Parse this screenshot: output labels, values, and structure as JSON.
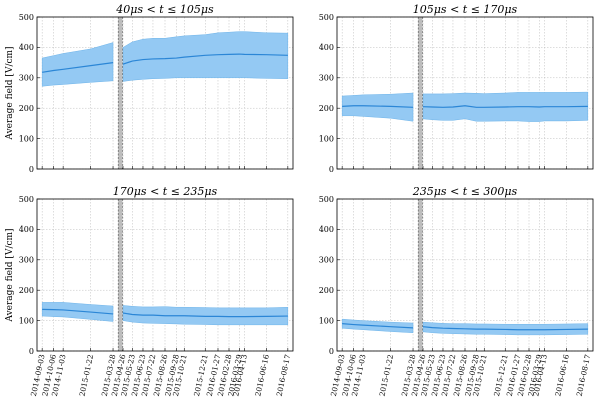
{
  "chart_data": [
    {
      "type": "area",
      "title": "40μs < t ≤ 105μs",
      "ylabel": "Average field [V/cm]",
      "xlabel": "",
      "ylim": [
        0,
        500
      ],
      "yticks": [
        0,
        100,
        200,
        300,
        400,
        500
      ],
      "x_tick_labels": [
        "2014-09-03",
        "2014-10-06",
        "2014-11-03",
        "2015-01-22",
        "2015-03-28",
        "2015-04-26",
        "2015-05-23",
        "2015-06-23",
        "2015-07-22",
        "2015-08-26",
        "2015-09-28",
        "2015-10-21",
        "2015-12-21",
        "2016-01-27",
        "2016-02-28",
        "2016-03-29",
        "2016-04-13",
        "2016-06-16",
        "2016-08-17"
      ],
      "gap_start": "2015-04-12",
      "gap_end": "2015-04-24",
      "grid": true,
      "series": [
        {
          "x": [
            "2014-09-03",
            "2014-10-06",
            "2014-11-03",
            "2015-01-22",
            "2015-03-28",
            "2015-04-26",
            "2015-05-23",
            "2015-06-23",
            "2015-07-22",
            "2015-08-26",
            "2015-09-28",
            "2015-10-21",
            "2015-12-21",
            "2016-01-27",
            "2016-02-28",
            "2016-03-29",
            "2016-04-13",
            "2016-06-16",
            "2016-08-17"
          ],
          "mean": [
            318,
            324,
            328,
            340,
            350,
            345,
            355,
            360,
            362,
            363,
            365,
            368,
            374,
            376,
            377,
            378,
            377,
            376,
            374
          ],
          "lower": [
            272,
            276,
            278,
            285,
            290,
            288,
            292,
            295,
            297,
            298,
            300,
            300,
            300,
            300,
            300,
            300,
            300,
            298,
            297
          ],
          "upper": [
            365,
            373,
            380,
            395,
            416,
            400,
            418,
            427,
            430,
            430,
            435,
            438,
            442,
            448,
            450,
            452,
            452,
            448,
            447
          ]
        }
      ]
    },
    {
      "type": "area",
      "title": "105μs < t ≤ 170μs",
      "ylabel": "",
      "xlabel": "",
      "ylim": [
        0,
        500
      ],
      "yticks": [
        0,
        100,
        200,
        300,
        400,
        500
      ],
      "x_tick_labels": [
        "2014-09-03",
        "2014-10-06",
        "2014-11-03",
        "2015-01-22",
        "2015-03-28",
        "2015-04-26",
        "2015-05-23",
        "2015-06-23",
        "2015-07-22",
        "2015-08-26",
        "2015-09-28",
        "2015-10-21",
        "2015-12-21",
        "2016-01-27",
        "2016-02-28",
        "2016-03-29",
        "2016-04-13",
        "2016-06-16",
        "2016-08-17"
      ],
      "gap_start": "2015-04-12",
      "gap_end": "2015-04-24",
      "grid": true,
      "series": [
        {
          "x": [
            "2014-09-03",
            "2014-10-06",
            "2014-11-03",
            "2015-01-22",
            "2015-03-28",
            "2015-04-26",
            "2015-05-23",
            "2015-06-23",
            "2015-07-22",
            "2015-08-26",
            "2015-09-28",
            "2015-10-21",
            "2015-12-21",
            "2016-01-27",
            "2016-02-28",
            "2016-03-29",
            "2016-04-13",
            "2016-06-16",
            "2016-08-17"
          ],
          "mean": [
            206,
            208,
            208,
            206,
            203,
            205,
            204,
            203,
            204,
            208,
            203,
            203,
            204,
            205,
            205,
            204,
            205,
            205,
            206
          ],
          "lower": [
            175,
            175,
            173,
            167,
            157,
            165,
            162,
            160,
            160,
            165,
            157,
            157,
            158,
            158,
            156,
            156,
            158,
            158,
            160
          ],
          "upper": [
            240,
            242,
            244,
            246,
            250,
            247,
            247,
            247,
            248,
            250,
            249,
            248,
            250,
            252,
            252,
            252,
            252,
            252,
            253
          ]
        }
      ]
    },
    {
      "type": "area",
      "title": "170μs < t ≤ 235μs",
      "ylabel": "Average field [V/cm]",
      "xlabel": "",
      "ylim": [
        0,
        500
      ],
      "yticks": [
        0,
        100,
        200,
        300,
        400,
        500
      ],
      "x_tick_labels": [
        "2014-09-03",
        "2014-10-06",
        "2014-11-03",
        "2015-01-22",
        "2015-03-28",
        "2015-04-26",
        "2015-05-23",
        "2015-06-23",
        "2015-07-22",
        "2015-08-26",
        "2015-09-28",
        "2015-10-21",
        "2015-12-21",
        "2016-01-27",
        "2016-02-28",
        "2016-03-29",
        "2016-04-13",
        "2016-06-16",
        "2016-08-17"
      ],
      "gap_start": "2015-04-12",
      "gap_end": "2015-04-24",
      "grid": true,
      "series": [
        {
          "x": [
            "2014-09-03",
            "2014-10-06",
            "2014-11-03",
            "2015-01-22",
            "2015-03-28",
            "2015-04-26",
            "2015-05-23",
            "2015-06-23",
            "2015-07-22",
            "2015-08-26",
            "2015-09-28",
            "2015-10-21",
            "2015-12-21",
            "2016-01-27",
            "2016-02-28",
            "2016-03-29",
            "2016-04-13",
            "2016-06-16",
            "2016-08-17"
          ],
          "mean": [
            137,
            136,
            135,
            128,
            122,
            125,
            120,
            118,
            118,
            116,
            116,
            116,
            114,
            114,
            113,
            113,
            113,
            114,
            115
          ],
          "lower": [
            115,
            113,
            112,
            104,
            97,
            100,
            95,
            92,
            91,
            90,
            89,
            88,
            87,
            86,
            86,
            86,
            86,
            86,
            86
          ],
          "upper": [
            160,
            160,
            160,
            153,
            148,
            150,
            147,
            145,
            145,
            146,
            144,
            144,
            143,
            142,
            142,
            142,
            142,
            142,
            144
          ]
        }
      ]
    },
    {
      "type": "area",
      "title": "235μs < t ≤ 300μs",
      "ylabel": "",
      "xlabel": "",
      "ylim": [
        0,
        500
      ],
      "yticks": [
        0,
        100,
        200,
        300,
        400,
        500
      ],
      "x_tick_labels": [
        "2014-09-03",
        "2014-10-06",
        "2014-11-03",
        "2015-01-22",
        "2015-03-28",
        "2015-04-26",
        "2015-05-23",
        "2015-06-23",
        "2015-07-22",
        "2015-08-26",
        "2015-09-28",
        "2015-10-21",
        "2015-12-21",
        "2016-01-27",
        "2016-02-28",
        "2016-03-29",
        "2016-04-13",
        "2016-06-16",
        "2016-08-17"
      ],
      "gap_start": "2015-04-12",
      "gap_end": "2015-04-24",
      "grid": true,
      "series": [
        {
          "x": [
            "2014-09-03",
            "2014-10-06",
            "2014-11-03",
            "2015-01-22",
            "2015-03-28",
            "2015-04-26",
            "2015-05-23",
            "2015-06-23",
            "2015-07-22",
            "2015-08-26",
            "2015-09-28",
            "2015-10-21",
            "2015-12-21",
            "2016-01-27",
            "2016-02-28",
            "2016-03-29",
            "2016-04-13",
            "2016-06-16",
            "2016-08-17"
          ],
          "mean": [
            90,
            87,
            85,
            80,
            76,
            80,
            77,
            75,
            74,
            73,
            72,
            72,
            71,
            70,
            70,
            70,
            70,
            71,
            72
          ],
          "lower": [
            75,
            72,
            70,
            64,
            60,
            63,
            60,
            58,
            57,
            56,
            55,
            55,
            54,
            53,
            53,
            53,
            53,
            54,
            55
          ],
          "upper": [
            105,
            102,
            100,
            95,
            92,
            95,
            93,
            91,
            90,
            90,
            89,
            89,
            88,
            88,
            88,
            88,
            88,
            89,
            90
          ]
        }
      ]
    }
  ],
  "colors": {
    "band": "#94c9f3",
    "band_edge": "#5aa9e6",
    "line": "#2b86d6",
    "gap": "#bdbdbd",
    "grid": "#bbbbbb"
  }
}
